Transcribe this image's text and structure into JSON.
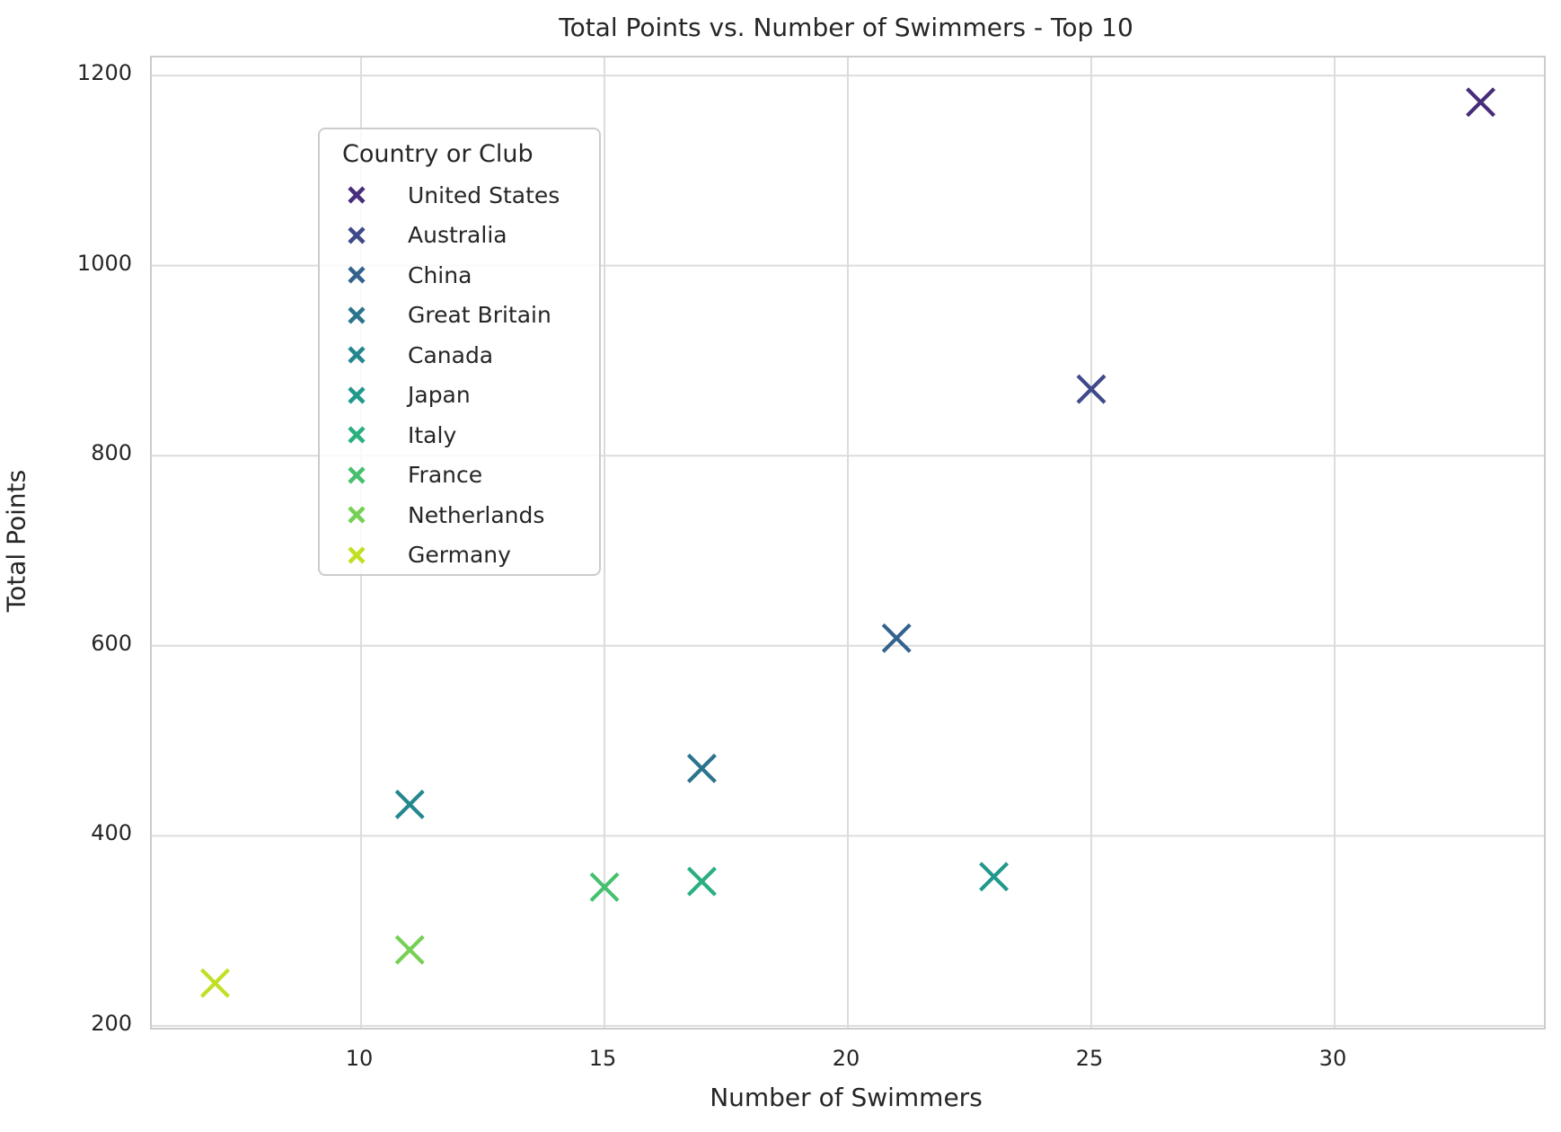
{
  "figure": {
    "title": "Total Points vs. Number of Swimmers - Top 10",
    "xlabel": "Number of Swimmers",
    "ylabel": "Total Points",
    "legend_title": "Country or Club"
  },
  "chart_data": {
    "type": "scatter",
    "title": "Total Points vs. Number of Swimmers - Top 10",
    "xlabel": "Number of Swimmers",
    "ylabel": "Total Points",
    "marker": "x",
    "grid": true,
    "legend_position": "upper left",
    "legend_title": "Country or Club",
    "xlim": [
      5.7,
      34.3
    ],
    "ylim": [
      198,
      1219
    ],
    "x_ticks": [
      "10",
      "15",
      "20",
      "25",
      "30"
    ],
    "x_tick_values": [
      10,
      15,
      20,
      25,
      30
    ],
    "y_ticks": [
      "200",
      "400",
      "600",
      "800",
      "1000",
      "1200"
    ],
    "y_tick_values": [
      200,
      400,
      600,
      800,
      1000,
      1200
    ],
    "series": [
      {
        "name": "United States",
        "x": 33,
        "y": 1172,
        "color": "#472d7b"
      },
      {
        "name": "Australia",
        "x": 25,
        "y": 870,
        "color": "#3e4a89"
      },
      {
        "name": "China",
        "x": 21,
        "y": 608,
        "color": "#33628d"
      },
      {
        "name": "Great Britain",
        "x": 17,
        "y": 471,
        "color": "#2b748e"
      },
      {
        "name": "Canada",
        "x": 11,
        "y": 433,
        "color": "#24878e"
      },
      {
        "name": "Japan",
        "x": 23,
        "y": 357,
        "color": "#20988b"
      },
      {
        "name": "Italy",
        "x": 17,
        "y": 352,
        "color": "#2ab07f"
      },
      {
        "name": "France",
        "x": 15,
        "y": 346,
        "color": "#46c06f"
      },
      {
        "name": "Netherlands",
        "x": 11,
        "y": 280,
        "color": "#75d054"
      },
      {
        "name": "Germany",
        "x": 7,
        "y": 245,
        "color": "#c0df25"
      }
    ]
  },
  "colors": {
    "text": "#262626",
    "grid": "#dcdcdc",
    "spine": "#cccccc",
    "background": "#ffffff"
  }
}
